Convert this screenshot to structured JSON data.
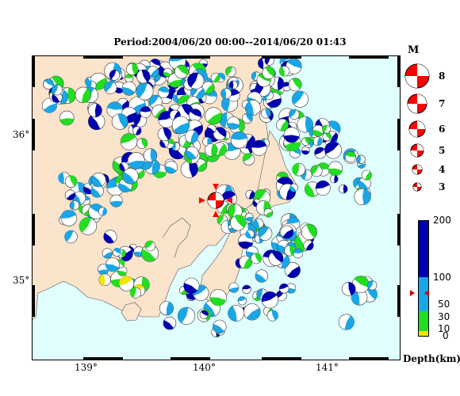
{
  "title": "Period:2004/06/20 00:00--2014/06/20 01:43",
  "lat_labels": [
    "36°",
    "35°"
  ],
  "lon_labels": [
    "139°",
    "140°",
    "141°"
  ],
  "magnitude_legend": {
    "title": "M",
    "items": [
      "8",
      "7",
      "6",
      "5",
      "4",
      "3"
    ]
  },
  "depth_legend": {
    "title": "Depth(km)",
    "ticks": [
      "200",
      "100",
      "50",
      "30",
      "10",
      "0"
    ],
    "colors": [
      "#0000b0",
      "#1aa6e6",
      "#22dd22",
      "#f2e600"
    ]
  },
  "colors": {
    "land": "#fbe4cc",
    "sea": "#e0fefe",
    "highlight": "#ff0000"
  }
}
